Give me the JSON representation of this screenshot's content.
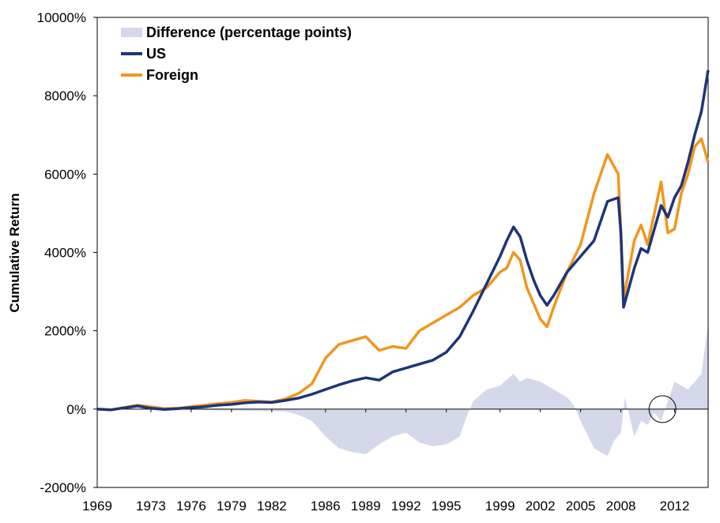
{
  "chart_data": {
    "type": "line",
    "title": "",
    "xlabel": "",
    "ylabel": "Cumulative Return",
    "x_ticks": [
      "1969",
      "1973",
      "1976",
      "1979",
      "1982",
      "1986",
      "1989",
      "1992",
      "1995",
      "1999",
      "2002",
      "2005",
      "2008",
      "2012"
    ],
    "y_ticks": [
      "10000%",
      "8000%",
      "6000%",
      "4000%",
      "2000%",
      "0%",
      "-2000%"
    ],
    "xlim": [
      1969,
      2014.5
    ],
    "ylim": [
      -2000,
      10000
    ],
    "grid": false,
    "legend_position": "top-left",
    "legend": [
      {
        "label": "Difference (percentage points)",
        "kind": "area",
        "color": "#d5d8ea"
      },
      {
        "label": "US",
        "kind": "line",
        "color": "#1f3478"
      },
      {
        "label": "Foreign",
        "kind": "line",
        "color": "#f0961e"
      }
    ],
    "annotation": {
      "type": "circle",
      "x": 2011.1,
      "y": 0
    },
    "series": [
      {
        "name": "US",
        "color": "#1f3478",
        "x": [
          1969,
          1970,
          1971,
          1972,
          1973,
          1974,
          1975,
          1976,
          1977,
          1978,
          1979,
          1980,
          1981,
          1982,
          1983,
          1984,
          1985,
          1986,
          1987,
          1988,
          1989,
          1990,
          1991,
          1992,
          1993,
          1994,
          1995,
          1996,
          1997,
          1998,
          1999,
          1999.5,
          2000,
          2000.5,
          2001,
          2001.5,
          2002,
          2002.5,
          2003,
          2004,
          2005,
          2006,
          2007,
          2007.8,
          2008,
          2008.2,
          2009,
          2009.5,
          2010,
          2011,
          2011.5,
          2012,
          2012.5,
          2013,
          2013.5,
          2014,
          2014.5
        ],
        "y": [
          0,
          -20,
          30,
          80,
          20,
          -10,
          10,
          40,
          60,
          100,
          120,
          160,
          180,
          170,
          220,
          280,
          380,
          500,
          620,
          720,
          800,
          740,
          950,
          1050,
          1150,
          1250,
          1450,
          1850,
          2500,
          3200,
          3900,
          4300,
          4650,
          4400,
          3800,
          3300,
          2900,
          2650,
          2900,
          3500,
          3900,
          4300,
          5300,
          5400,
          4500,
          2600,
          3600,
          4100,
          4000,
          5200,
          4900,
          5400,
          5700,
          6300,
          7000,
          7600,
          8650
        ]
      },
      {
        "name": "Foreign",
        "color": "#f0961e",
        "x": [
          1969,
          1970,
          1971,
          1972,
          1973,
          1974,
          1975,
          1976,
          1977,
          1978,
          1979,
          1980,
          1981,
          1982,
          1983,
          1984,
          1985,
          1986,
          1987,
          1988,
          1989,
          1990,
          1991,
          1992,
          1993,
          1994,
          1995,
          1996,
          1997,
          1998,
          1999,
          1999.5,
          2000,
          2000.5,
          2001,
          2001.5,
          2002,
          2002.5,
          2003,
          2004,
          2005,
          2006,
          2007,
          2007.8,
          2008,
          2008.2,
          2009,
          2009.5,
          2010,
          2011,
          2011.5,
          2012,
          2012.5,
          2013,
          2013.5,
          2014,
          2014.5
        ],
        "y": [
          0,
          -20,
          40,
          100,
          60,
          10,
          20,
          60,
          100,
          140,
          170,
          220,
          200,
          180,
          260,
          400,
          650,
          1300,
          1650,
          1750,
          1850,
          1500,
          1600,
          1550,
          2000,
          2200,
          2400,
          2600,
          2900,
          3100,
          3500,
          3600,
          4000,
          3800,
          3100,
          2700,
          2300,
          2100,
          2600,
          3500,
          4200,
          5500,
          6500,
          6000,
          4500,
          2800,
          4300,
          4700,
          4200,
          5800,
          4500,
          4600,
          5500,
          6000,
          6700,
          6900,
          6300
        ]
      }
    ],
    "difference": {
      "name": "Difference (percentage points)",
      "color": "#d5d8ea",
      "x": [
        1969,
        1972,
        1976,
        1979,
        1981,
        1983,
        1984,
        1985,
        1986,
        1987,
        1988,
        1989,
        1990,
        1991,
        1992,
        1993,
        1994,
        1995,
        1996,
        1996.5,
        1997,
        1998,
        1999,
        2000,
        2000.5,
        2001,
        2002,
        2003,
        2004,
        2004.5,
        2005,
        2006,
        2007,
        2007.5,
        2008,
        2008.3,
        2009,
        2009.5,
        2010,
        2010.5,
        2011,
        2011.5,
        2012,
        2013,
        2014,
        2014.5
      ],
      "y": [
        0,
        0,
        -20,
        -40,
        -50,
        -60,
        -150,
        -300,
        -700,
        -1000,
        -1100,
        -1150,
        -900,
        -700,
        -600,
        -850,
        -950,
        -900,
        -700,
        -200,
        200,
        500,
        600,
        900,
        700,
        800,
        700,
        500,
        300,
        100,
        -300,
        -1000,
        -1200,
        -800,
        -600,
        300,
        -700,
        -300,
        -400,
        -100,
        -300,
        200,
        700,
        500,
        900,
        2200
      ]
    }
  }
}
